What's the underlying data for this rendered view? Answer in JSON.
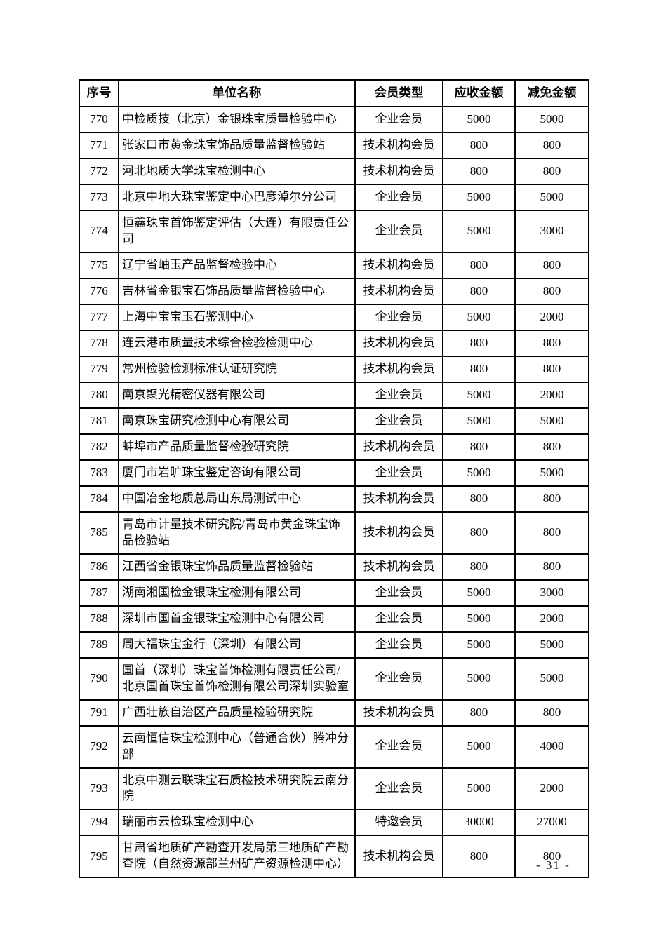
{
  "table": {
    "columns": [
      {
        "key": "no",
        "label": "序号"
      },
      {
        "key": "name",
        "label": "单位名称"
      },
      {
        "key": "type",
        "label": "会员类型"
      },
      {
        "key": "amount",
        "label": "应收金额"
      },
      {
        "key": "reduction",
        "label": "减免金额"
      }
    ],
    "rows": [
      {
        "no": "770",
        "name": "中检质技（北京）金银珠宝质量检验中心",
        "type": "企业会员",
        "amount": "5000",
        "reduction": "5000"
      },
      {
        "no": "771",
        "name": "张家口市黄金珠宝饰品质量监督检验站",
        "type": "技术机构会员",
        "amount": "800",
        "reduction": "800"
      },
      {
        "no": "772",
        "name": "河北地质大学珠宝检测中心",
        "type": "技术机构会员",
        "amount": "800",
        "reduction": "800"
      },
      {
        "no": "773",
        "name": "北京中地大珠宝鉴定中心巴彦淖尔分公司",
        "type": "企业会员",
        "amount": "5000",
        "reduction": "5000"
      },
      {
        "no": "774",
        "name": "恒鑫珠宝首饰鉴定评估（大连）有限责任公司",
        "type": "企业会员",
        "amount": "5000",
        "reduction": "3000"
      },
      {
        "no": "775",
        "name": "辽宁省岫玉产品监督检验中心",
        "type": "技术机构会员",
        "amount": "800",
        "reduction": "800"
      },
      {
        "no": "776",
        "name": "吉林省金银宝石饰品质量监督检验中心",
        "type": "技术机构会员",
        "amount": "800",
        "reduction": "800"
      },
      {
        "no": "777",
        "name": "上海中宝宝玉石鉴测中心",
        "type": "企业会员",
        "amount": "5000",
        "reduction": "2000"
      },
      {
        "no": "778",
        "name": "连云港市质量技术综合检验检测中心",
        "type": "技术机构会员",
        "amount": "800",
        "reduction": "800"
      },
      {
        "no": "779",
        "name": "常州检验检测标准认证研究院",
        "type": "技术机构会员",
        "amount": "800",
        "reduction": "800"
      },
      {
        "no": "780",
        "name": "南京聚光精密仪器有限公司",
        "type": "企业会员",
        "amount": "5000",
        "reduction": "2000"
      },
      {
        "no": "781",
        "name": "南京珠宝研究检测中心有限公司",
        "type": "企业会员",
        "amount": "5000",
        "reduction": "5000"
      },
      {
        "no": "782",
        "name": "蚌埠市产品质量监督检验研究院",
        "type": "技术机构会员",
        "amount": "800",
        "reduction": "800"
      },
      {
        "no": "783",
        "name": "厦门市岩旷珠宝鉴定咨询有限公司",
        "type": "企业会员",
        "amount": "5000",
        "reduction": "5000"
      },
      {
        "no": "784",
        "name": "中国冶金地质总局山东局测试中心",
        "type": "技术机构会员",
        "amount": "800",
        "reduction": "800"
      },
      {
        "no": "785",
        "name": "青岛市计量技术研究院/青岛市黄金珠宝饰品检验站",
        "type": "技术机构会员",
        "amount": "800",
        "reduction": "800"
      },
      {
        "no": "786",
        "name": "江西省金银珠宝饰品质量监督检验站",
        "type": "技术机构会员",
        "amount": "800",
        "reduction": "800"
      },
      {
        "no": "787",
        "name": "湖南湘国检金银珠宝检测有限公司",
        "type": "企业会员",
        "amount": "5000",
        "reduction": "3000"
      },
      {
        "no": "788",
        "name": "深圳市国首金银珠宝检测中心有限公司",
        "type": "企业会员",
        "amount": "5000",
        "reduction": "2000"
      },
      {
        "no": "789",
        "name": "周大福珠宝金行（深圳）有限公司",
        "type": "企业会员",
        "amount": "5000",
        "reduction": "5000"
      },
      {
        "no": "790",
        "name": "国首（深圳）珠宝首饰检测有限责任公司/北京国首珠宝首饰检测有限公司深圳实验室",
        "type": "企业会员",
        "amount": "5000",
        "reduction": "5000"
      },
      {
        "no": "791",
        "name": "广西壮族自治区产品质量检验研究院",
        "type": "技术机构会员",
        "amount": "800",
        "reduction": "800"
      },
      {
        "no": "792",
        "name": "云南恒信珠宝检测中心（普通合伙）腾冲分部",
        "type": "企业会员",
        "amount": "5000",
        "reduction": "4000"
      },
      {
        "no": "793",
        "name": "北京中测云联珠宝石质检技术研究院云南分院",
        "type": "企业会员",
        "amount": "5000",
        "reduction": "2000"
      },
      {
        "no": "794",
        "name": "瑞丽市云检珠宝检测中心",
        "type": "特邀会员",
        "amount": "30000",
        "reduction": "27000"
      },
      {
        "no": "795",
        "name": "甘肃省地质矿产勘查开发局第三地质矿产勘查院（自然资源部兰州矿产资源检测中心）",
        "type": "技术机构会员",
        "amount": "800",
        "reduction": "800"
      }
    ]
  },
  "footer": {
    "page_number": "- 31 -"
  }
}
